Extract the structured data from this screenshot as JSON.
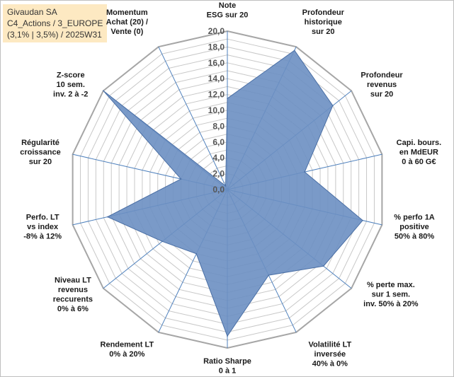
{
  "header": {
    "line1": "Givaudan SA",
    "line2": "C4_Actions / 3_EUROPE",
    "line3": "(3,1% | 3,5%) / 2025W31"
  },
  "chart_data": {
    "type": "radar",
    "categories": [
      [
        "Note",
        "ESG sur 20"
      ],
      [
        "Profondeur",
        "historique",
        "sur 20"
      ],
      [
        "Profondeur",
        "revenus",
        "sur 20"
      ],
      [
        "Capi. bours.",
        "en MdEUR",
        "0 à 60 G€"
      ],
      [
        "% perfo 1A",
        "positive",
        "50% à 80%"
      ],
      [
        "% perte max.",
        "sur 1 sem.",
        "inv. 50% à 20%"
      ],
      [
        "Volatilité LT",
        "inversée",
        "40% à 0%"
      ],
      [
        "Ratio Sharpe",
        "0 à 1"
      ],
      [
        "Rendement LT",
        "0% à 20%"
      ],
      [
        "Niveau LT",
        "revenus",
        "reccurents",
        "0% à 6%"
      ],
      [
        "Perfo. LT",
        "vs index",
        "-8% à 12%"
      ],
      [
        "Régularité",
        "croissance",
        "sur 20"
      ],
      [
        "Z-score",
        "10 sem.",
        "inv. 2 à -2"
      ],
      [
        "Momentum",
        "Achat (20) /",
        "Vente (0)"
      ]
    ],
    "values": [
      11.5,
      19.5,
      17.0,
      10.0,
      17.5,
      15.5,
      12.0,
      18.5,
      9.0,
      10.5,
      15.5,
      6.0,
      20.0,
      0.5
    ],
    "rlim": [
      0,
      20
    ],
    "ticks": [
      "0,0",
      "2,0",
      "4,0",
      "6,0",
      "8,0",
      "10,0",
      "12,0",
      "14,0",
      "16,0",
      "18,0",
      "20,0"
    ],
    "colors": {
      "fill": "#6b8fc2",
      "stroke": "#4a6fa5",
      "grid": "#c8c8c8",
      "spoke": "#4f81bd"
    }
  }
}
